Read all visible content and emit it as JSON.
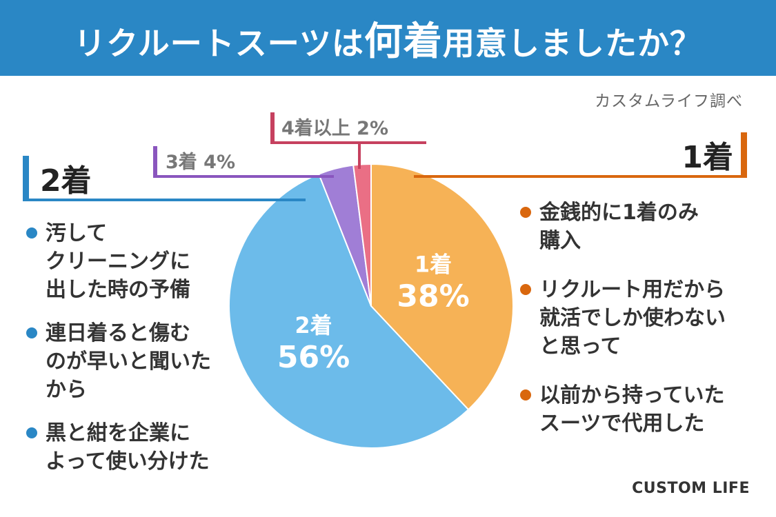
{
  "header": {
    "title_part1": "リクルートスーツは",
    "title_em": "何着",
    "title_part2": "用意しましたか？"
  },
  "source": "カスタムライフ調べ",
  "chart_data": {
    "type": "pie",
    "title": "リクルートスーツは何着用意しましたか？",
    "categories": [
      "1着",
      "2着",
      "3着",
      "4着以上"
    ],
    "values": [
      38,
      56,
      4,
      2
    ],
    "unit": "%",
    "colors": [
      "#f6b256",
      "#6cbbea",
      "#a07ed6",
      "#ea6f85"
    ],
    "slice_labels": [
      {
        "name": "1着",
        "value": "38%"
      },
      {
        "name": "2着",
        "value": "56%"
      }
    ]
  },
  "callouts": {
    "one": {
      "label": "1着",
      "color": "#d9670e"
    },
    "two": {
      "label": "2着",
      "color": "#2a87c5"
    },
    "three": {
      "label": "3着 4%",
      "color": "#8a56be"
    },
    "four": {
      "label": "4着以上 2%",
      "color": "#c6415f"
    }
  },
  "reasons_two": [
    "汚して\nクリーニングに\n出した時の予備",
    "連日着ると傷む\nのが早いと聞いた\nから",
    "黒と紺を企業に\nよって使い分けた"
  ],
  "reasons_one": [
    "金銭的に1着のみ\n購入",
    "リクルート用だから\n就活でしか使わない\nと思って",
    "以前から持っていた\nスーツで代用した"
  ],
  "brand": "CUSTOM LIFE"
}
